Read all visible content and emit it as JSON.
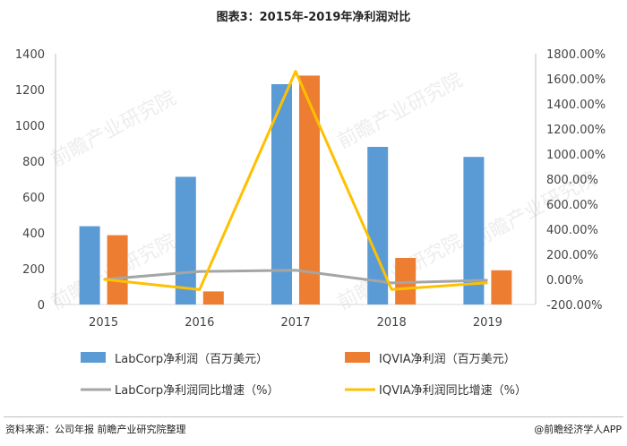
{
  "title": "图表3：2015年-2019年净利润对比",
  "source": "资料来源：公司年报 前瞻产业研究院整理",
  "brand": "@前瞻经济学人APP",
  "watermark": "前瞻产业研究院",
  "chart_data": {
    "type": "bar",
    "categories": [
      "2015",
      "2016",
      "2017",
      "2018",
      "2019"
    ],
    "series": [
      {
        "name": "LabCorp净利润（百万美元）",
        "kind": "bar",
        "axis": "left",
        "color": "#5b9bd5",
        "values": [
          437,
          713,
          1230,
          880,
          824
        ]
      },
      {
        "name": "IQVIA净利润（百万美元）",
        "kind": "bar",
        "axis": "left",
        "color": "#ed7d31",
        "values": [
          387,
          73,
          1278,
          260,
          191
        ]
      },
      {
        "name": "LabCorp净利润同比增速（%）",
        "kind": "line",
        "axis": "right",
        "color": "#a5a5a5",
        "values": [
          0,
          63,
          73,
          -28,
          -6
        ]
      },
      {
        "name": "IQVIA净利润同比增速（%）",
        "kind": "line",
        "axis": "right",
        "color": "#ffc000",
        "values": [
          1,
          -81,
          1660,
          -80,
          -27
        ]
      }
    ],
    "y_left": {
      "range": [
        0,
        1400
      ],
      "ticks": [
        "0",
        "200",
        "400",
        "600",
        "800",
        "1000",
        "1200",
        "1400"
      ]
    },
    "y_right": {
      "range": [
        -200,
        1800
      ],
      "ticks": [
        "-200.00%",
        "0.00%",
        "200.00%",
        "400.00%",
        "600.00%",
        "800.00%",
        "1000.00%",
        "1200.00%",
        "1400.00%",
        "1600.00%",
        "1800.00%"
      ]
    },
    "grid": false,
    "legend": "bottom"
  }
}
